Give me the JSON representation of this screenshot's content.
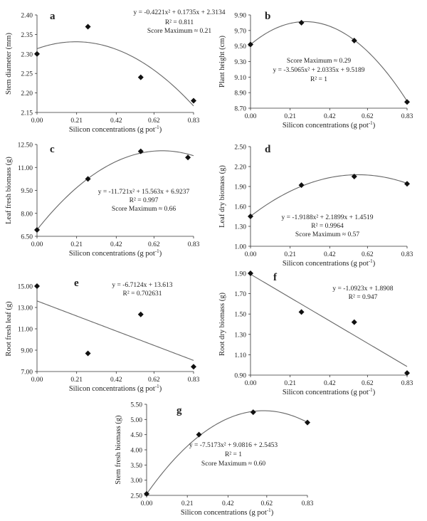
{
  "chart_data": [
    {
      "id": "a",
      "type": "scatter",
      "letter": "a",
      "xlabel_main": "Silicon concentrations (g pot",
      "xlabel_sup": "-1",
      "xlabel_end": ")",
      "ylabel": "Stem diameter (mm)",
      "xticks": [
        "0.00",
        "0.21",
        "0.42",
        "0.62",
        "0.83"
      ],
      "yticks": [
        "2.15",
        "2.20",
        "2.25",
        "2.30",
        "2.35",
        "2.40"
      ],
      "xlim": [
        0,
        0.83
      ],
      "ylim": [
        2.15,
        2.4
      ],
      "points": [
        [
          0.0,
          2.3
        ],
        [
          0.27,
          2.37
        ],
        [
          0.55,
          2.24
        ],
        [
          0.83,
          2.18
        ]
      ],
      "fit": {
        "kind": "quadratic",
        "coef": [
          -0.4221,
          0.1735,
          2.3134
        ]
      },
      "annotations": [
        "y = -0.4221x² + 0.1735x + 2.3134",
        "R² = 0.811",
        "Score Maximum ≈ 0.21"
      ]
    },
    {
      "id": "b",
      "type": "scatter",
      "letter": "b",
      "xlabel_main": "Silicon concentrations (g pot",
      "xlabel_sup": "-1",
      "xlabel_end": ")",
      "ylabel": "Plant height (cm)",
      "xticks": [
        "0.00",
        "0.21",
        "0.42",
        "0.62",
        "0.83"
      ],
      "yticks": [
        "8.70",
        "8.90",
        "9.10",
        "9.30",
        "9.50",
        "9.70",
        "9.90"
      ],
      "xlim": [
        0,
        0.83
      ],
      "ylim": [
        8.7,
        9.9
      ],
      "points": [
        [
          0.0,
          9.52
        ],
        [
          0.27,
          9.8
        ],
        [
          0.55,
          9.57
        ],
        [
          0.83,
          8.78
        ]
      ],
      "fit": {
        "kind": "quadratic",
        "coef": [
          -3.5065,
          2.0335,
          9.5189
        ]
      },
      "annotations": [
        "Score Maximum ≈ 0.29",
        "y = -3.5065x² + 2.0335x + 9.5189",
        "R² = 1"
      ]
    },
    {
      "id": "c",
      "type": "scatter",
      "letter": "c",
      "xlabel_main": "Silicon concentrations (g pot",
      "xlabel_sup": "-1",
      "xlabel_end": ")",
      "ylabel": "Leaf fresh biomass (g)",
      "xticks": [
        "0.00",
        "0.21",
        "0.42",
        "0.62",
        "0.83"
      ],
      "yticks": [
        "6.50",
        "8.00",
        "9.50",
        "11.00",
        "12.50"
      ],
      "xlim": [
        0,
        0.83
      ],
      "ylim": [
        6.5,
        12.5
      ],
      "points": [
        [
          0.0,
          6.92
        ],
        [
          0.27,
          10.25
        ],
        [
          0.55,
          12.05
        ],
        [
          0.8,
          11.65
        ]
      ],
      "fit": {
        "kind": "quadratic",
        "coef": [
          -11.721,
          15.563,
          6.9237
        ]
      },
      "annotations": [
        "y = -11.721x² + 15.563x + 6.9237",
        "R² = 0.997",
        "Score Maximum ≈ 0.66"
      ]
    },
    {
      "id": "d",
      "type": "scatter",
      "letter": "d",
      "xlabel_main": "Silicon concentrations (g pot",
      "xlabel_sup": "-1",
      "xlabel_end": ")",
      "ylabel": "Leaf dry biomass (g)",
      "xticks": [
        "0.00",
        "0.21",
        "0.42",
        "0.62",
        "0.83"
      ],
      "yticks": [
        "1.00",
        "1.30",
        "1.60",
        "1.90",
        "2.20",
        "2.50"
      ],
      "xlim": [
        0,
        0.83
      ],
      "ylim": [
        1.0,
        2.5
      ],
      "points": [
        [
          0.0,
          1.45
        ],
        [
          0.27,
          1.92
        ],
        [
          0.55,
          2.05
        ],
        [
          0.83,
          1.94
        ]
      ],
      "fit": {
        "kind": "quadratic",
        "coef": [
          -1.9188,
          2.1899,
          1.4519
        ]
      },
      "annotations": [
        "y = -1.9188x² + 2.1899x + 1.4519",
        "R² = 0.9964",
        "Score Maximum ≈ 0.57"
      ]
    },
    {
      "id": "e",
      "type": "scatter",
      "letter": "e",
      "xlabel_main": "Silicon concentrations (g pot",
      "xlabel_sup": "-1",
      "xlabel_end": ")",
      "ylabel": "Root fresh leaf (g)",
      "xticks": [
        "0.00",
        "0.21",
        "0.42",
        "0.62",
        "0.83"
      ],
      "yticks": [
        "7.00",
        "9.00",
        "11.00",
        "13.00",
        "15.00"
      ],
      "xlim": [
        0,
        0.83
      ],
      "ylim": [
        7.0,
        15.0
      ],
      "points": [
        [
          0.0,
          15.0
        ],
        [
          0.27,
          8.7
        ],
        [
          0.55,
          12.35
        ],
        [
          0.83,
          7.45
        ]
      ],
      "fit": {
        "kind": "linear",
        "coef": [
          -6.7124,
          13.613
        ]
      },
      "annotations": [
        "y = -6.7124x + 13.613",
        "R² = 0.702631"
      ]
    },
    {
      "id": "f",
      "type": "scatter",
      "letter": "f",
      "xlabel_main": "Silicon concentrations (g pot",
      "xlabel_sup": "-1",
      "xlabel_end": ")",
      "ylabel": "Root dry biomass (g)",
      "xticks": [
        "0.00",
        "0.21",
        "0.42",
        "0.62",
        "0.83"
      ],
      "yticks": [
        "0.90",
        "1.10",
        "1.30",
        "1.50",
        "1.70",
        "1.90"
      ],
      "xlim": [
        0,
        0.83
      ],
      "ylim": [
        0.9,
        1.9
      ],
      "points": [
        [
          0.0,
          1.9
        ],
        [
          0.27,
          1.52
        ],
        [
          0.55,
          1.42
        ],
        [
          0.83,
          0.92
        ]
      ],
      "fit": {
        "kind": "linear",
        "coef": [
          -1.0923,
          1.8908
        ]
      },
      "annotations": [
        "y = -1.0923x + 1.8908",
        "R² = 0.947"
      ]
    },
    {
      "id": "g",
      "type": "scatter",
      "letter": "g",
      "xlabel_main": "Silicon concentrations (g pot",
      "xlabel_sup": "-1",
      "xlabel_end": ")",
      "ylabel": "Stem fresh biomass (g)",
      "xticks": [
        "0.00",
        "0.21",
        "0.42",
        "0.62",
        "0.83"
      ],
      "yticks": [
        "2.50",
        "3.00",
        "3.50",
        "4.00",
        "4.50",
        "5.00",
        "5.50"
      ],
      "xlim": [
        0,
        0.83
      ],
      "ylim": [
        2.5,
        5.5
      ],
      "points": [
        [
          0.0,
          2.55
        ],
        [
          0.27,
          4.5
        ],
        [
          0.55,
          5.24
        ],
        [
          0.83,
          4.9
        ]
      ],
      "fit": {
        "kind": "quadratic",
        "coef": [
          -7.5173,
          9.0816,
          2.5453
        ]
      },
      "annotations": [
        "y = -7.5173x² + 9.0816 + 2.5453",
        "R² = 1",
        "Score Maximum ≈ 0.60"
      ]
    }
  ]
}
